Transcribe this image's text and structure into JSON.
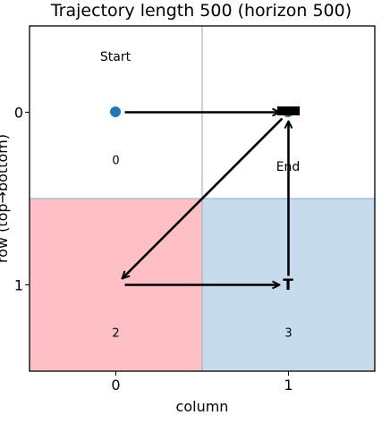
{
  "chart_data": {
    "type": "heatmap",
    "title": "Trajectory length 500 (horizon 500)",
    "xlabel": "column",
    "ylabel": "row (top→bottom)",
    "x_ticks": [
      "0",
      "1"
    ],
    "y_ticks": [
      "0",
      "1"
    ],
    "grid": {
      "rows": 2,
      "cols": 2,
      "cells": [
        {
          "row": 0,
          "col": 0,
          "index": "0",
          "color": "#ffffff"
        },
        {
          "row": 0,
          "col": 1,
          "index": "",
          "color": "#ffffff"
        },
        {
          "row": 1,
          "col": 0,
          "index": "2",
          "color": "#ffc0c5"
        },
        {
          "row": 1,
          "col": 1,
          "index": "3",
          "color": "#c6dbec"
        }
      ]
    },
    "labels": {
      "start": "Start",
      "end": "End",
      "terminal": "T"
    },
    "path": [
      {
        "from": [
          0,
          0
        ],
        "to": [
          0,
          1
        ]
      },
      {
        "from": [
          0,
          1
        ],
        "to": [
          1,
          0
        ]
      },
      {
        "from": [
          1,
          0
        ],
        "to": [
          1,
          1
        ]
      },
      {
        "from": [
          1,
          1
        ],
        "to": [
          0,
          1
        ]
      }
    ],
    "colors": {
      "start_marker": "#1f77b4",
      "arrow": "#000000",
      "cell_border": "#9bb8d3"
    }
  }
}
